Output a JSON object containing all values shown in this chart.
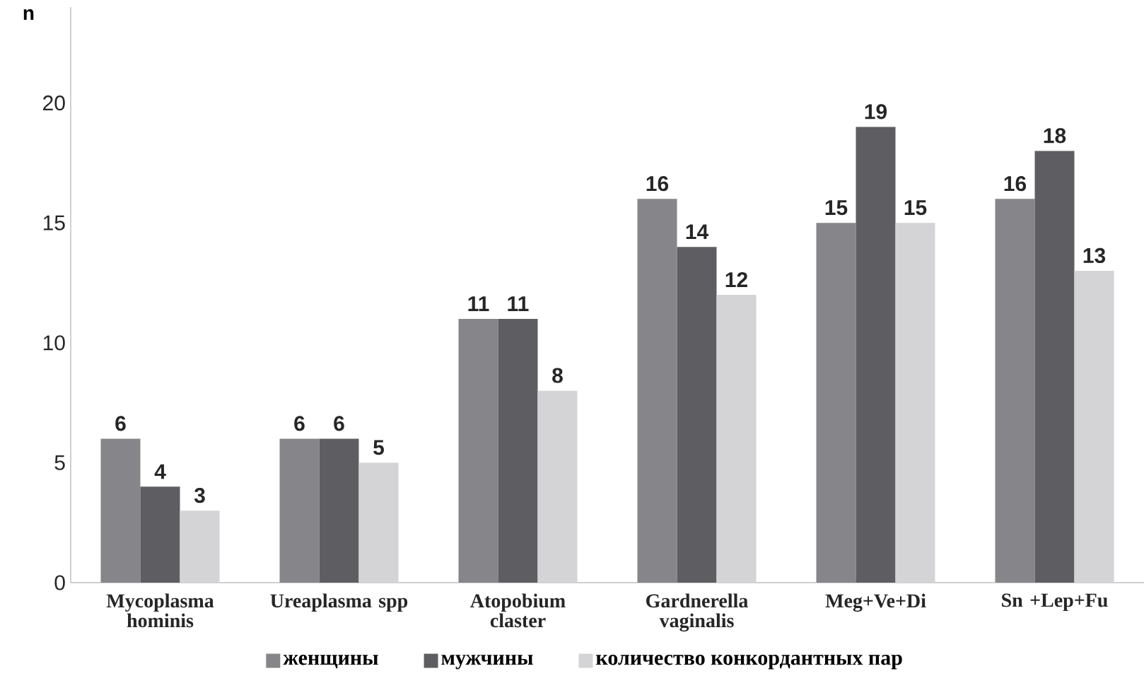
{
  "chart_data": {
    "type": "bar",
    "ylabel": "n",
    "categories": [
      "Mycoplasma hominis",
      "Ureaplasma spp",
      "Atopobium claster",
      "Gardnerella vaginalis",
      "Meg+Ve+Di",
      "Sn +Lep+Fu"
    ],
    "series": [
      {
        "name": "женщины",
        "color": "#86868a",
        "values": [
          6,
          6,
          11,
          16,
          15,
          16
        ]
      },
      {
        "name": "мужчины",
        "color": "#5e5e62",
        "values": [
          4,
          6,
          11,
          14,
          19,
          18
        ]
      },
      {
        "name": "количество конкордантных пар",
        "color": "#d4d4d6",
        "values": [
          3,
          5,
          8,
          12,
          15,
          13
        ]
      }
    ],
    "ylim": [
      0,
      24
    ],
    "yticks": [
      0,
      5,
      10,
      15,
      20
    ],
    "grid": false,
    "legend": "bottom",
    "data_labels": true
  }
}
